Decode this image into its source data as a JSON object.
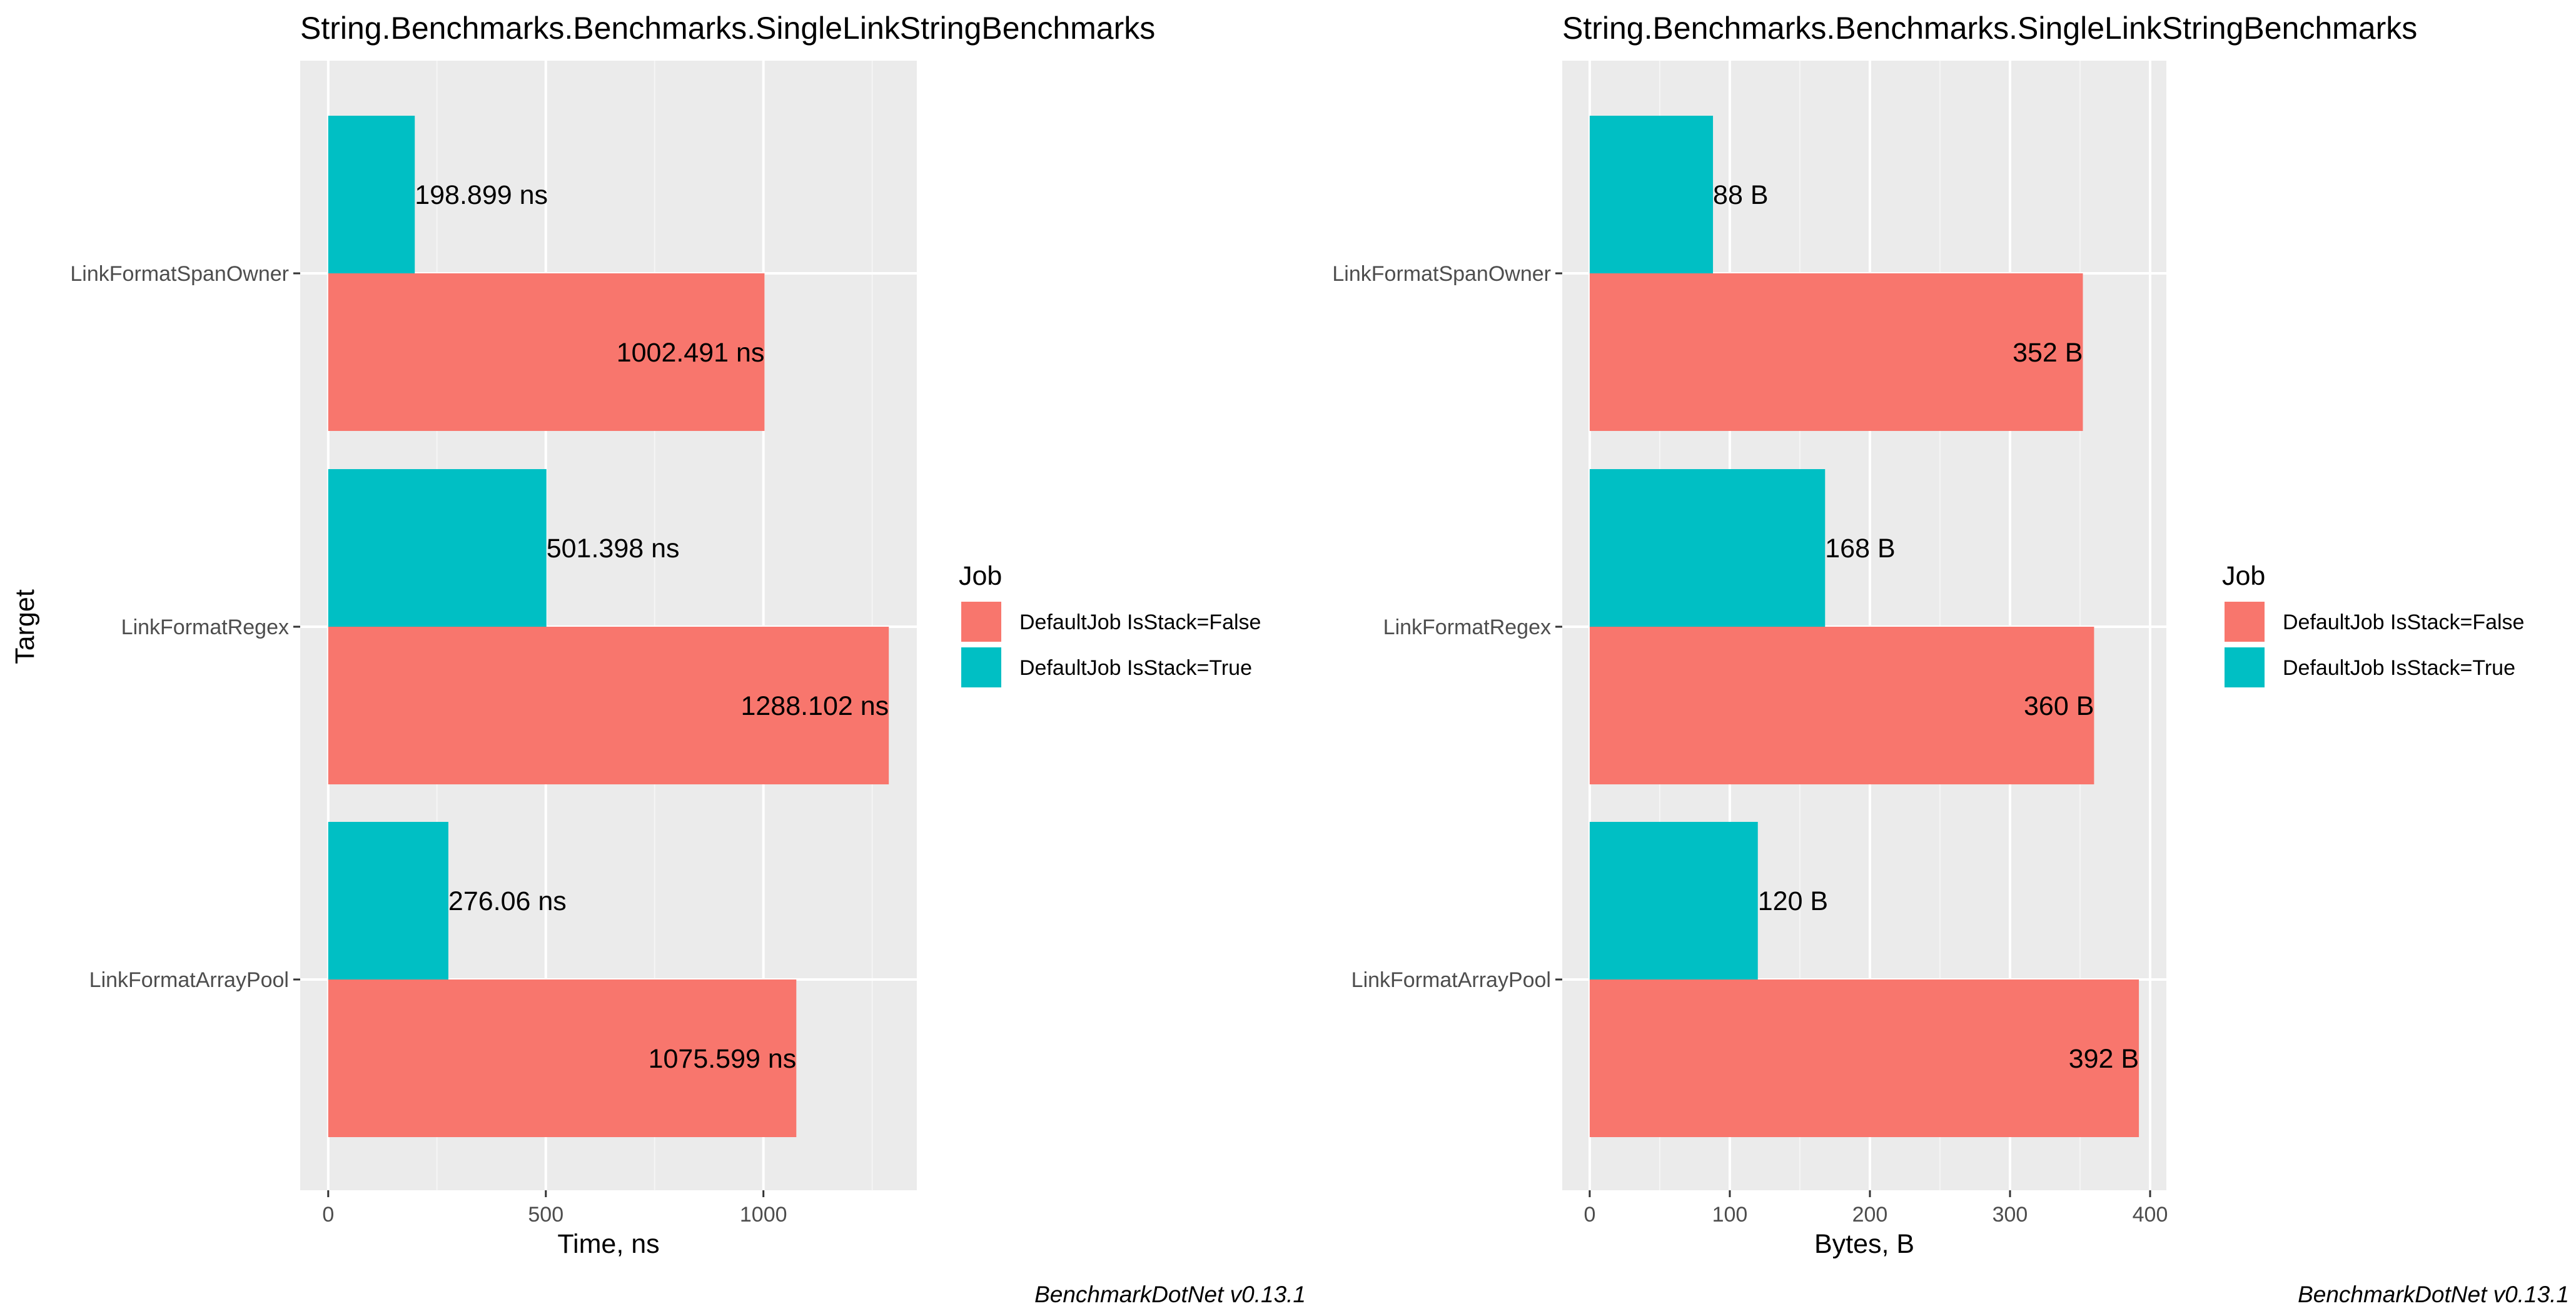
{
  "colors": {
    "panel": "#EBEBEB",
    "grid_major": "#FFFFFF",
    "grid_minor": "#F5F5F5",
    "tick": "#333333",
    "false_series": "#F8766D",
    "true_series": "#00BFC4"
  },
  "y_axis_label": "Target",
  "chart_data": [
    {
      "type": "bar",
      "orientation": "horizontal",
      "title": "String.Benchmarks.Benchmarks.SingleLinkStringBenchmarks",
      "xlabel": "Time, ns",
      "ylabel": "Target",
      "categories": [
        "LinkFormatSpanOwner",
        "LinkFormatRegex",
        "LinkFormatArrayPool"
      ],
      "series": [
        {
          "name": "DefaultJob IsStack=True",
          "color": "#00BFC4",
          "values": [
            198.899,
            501.398,
            276.06
          ],
          "labels": [
            "198.899 ns",
            "501.398 ns",
            "276.06 ns"
          ]
        },
        {
          "name": "DefaultJob IsStack=False",
          "color": "#F8766D",
          "values": [
            1002.491,
            1288.102,
            1075.599
          ],
          "labels": [
            "1002.491 ns",
            "1288.102 ns",
            "1075.599 ns"
          ]
        }
      ],
      "xlim": [
        -64.4,
        1352.5
      ],
      "ticks": [
        0,
        500,
        1000
      ],
      "tick_labels": [
        "0",
        "500",
        "1000"
      ],
      "grid": true,
      "legend": {
        "title": "Job",
        "position": "right",
        "entries": [
          "DefaultJob IsStack=False",
          "DefaultJob IsStack=True"
        ]
      },
      "caption": "BenchmarkDotNet v0.13.1"
    },
    {
      "type": "bar",
      "orientation": "horizontal",
      "title": "String.Benchmarks.Benchmarks.SingleLinkStringBenchmarks",
      "xlabel": "Bytes, B",
      "ylabel": "",
      "categories": [
        "LinkFormatSpanOwner",
        "LinkFormatRegex",
        "LinkFormatArrayPool"
      ],
      "series": [
        {
          "name": "DefaultJob IsStack=True",
          "color": "#00BFC4",
          "values": [
            88,
            168,
            120
          ],
          "labels": [
            "88 B",
            "168 B",
            "120 B"
          ]
        },
        {
          "name": "DefaultJob IsStack=False",
          "color": "#F8766D",
          "values": [
            352,
            360,
            392
          ],
          "labels": [
            "352 B",
            "360 B",
            "392 B"
          ]
        }
      ],
      "xlim": [
        -19.6,
        411.6
      ],
      "ticks": [
        0,
        100,
        200,
        300,
        400
      ],
      "tick_labels": [
        "0",
        "100",
        "200",
        "300",
        "400"
      ],
      "grid": true,
      "legend": {
        "title": "Job",
        "position": "right",
        "entries": [
          "DefaultJob IsStack=False",
          "DefaultJob IsStack=True"
        ]
      },
      "caption": "BenchmarkDotNet v0.13.1"
    }
  ]
}
